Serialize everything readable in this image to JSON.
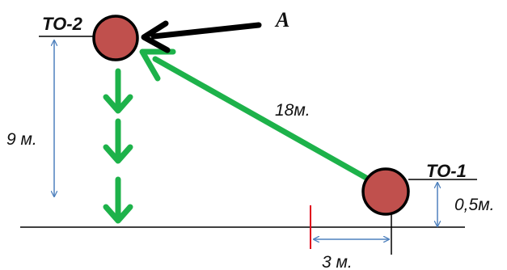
{
  "labels": {
    "to2": "ТО-2",
    "to1": "ТО-1",
    "a": "A",
    "distance": "18м.",
    "height": "9 м.",
    "offset_height": "0,5м.",
    "offset_horizontal": "3 м."
  },
  "colors": {
    "node_fill": "#c0504d",
    "node_stroke": "#000000",
    "green_arrow": "#1db24a",
    "dimension": "#4f81bd",
    "marker": "#e0001b",
    "line": "#000000"
  }
}
